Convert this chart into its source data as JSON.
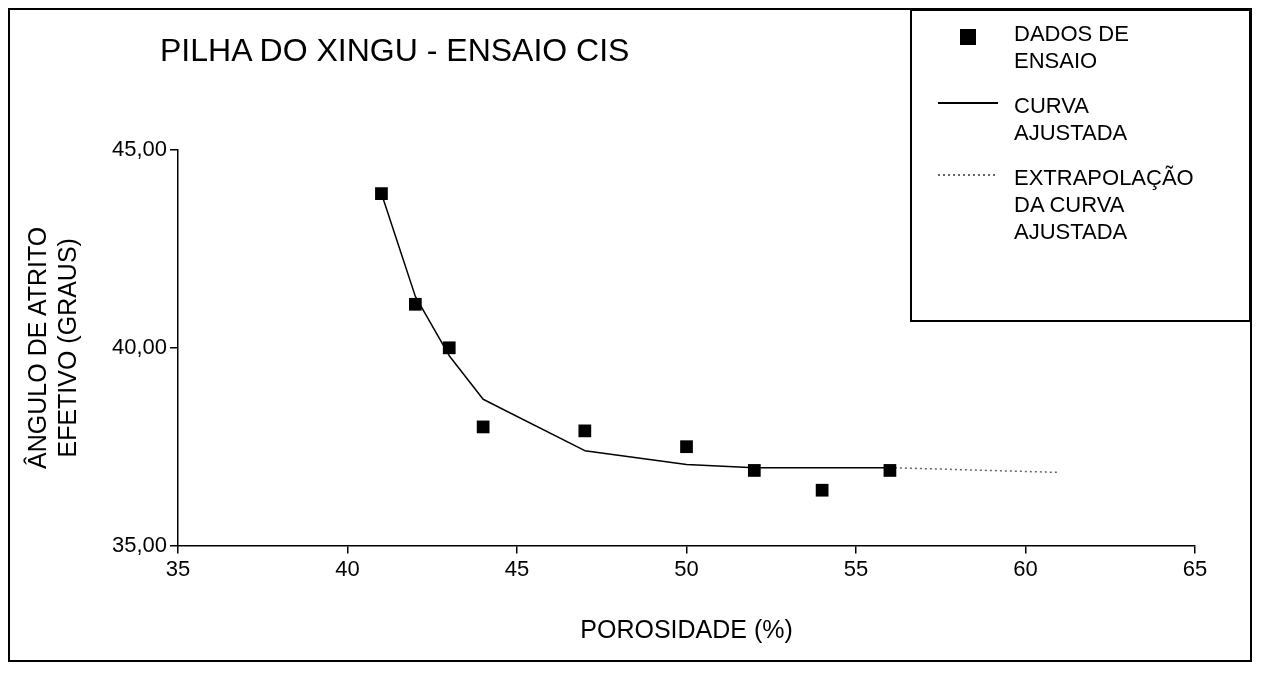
{
  "chart_data": {
    "type": "scatter",
    "title": "PILHA DO XINGU - ENSAIO CIS",
    "xlabel": "POROSIDADE (%)",
    "ylabel": "ÂNGULO DE ATRITO EFETIVO (GRAUS)",
    "xlim": [
      35,
      65
    ],
    "xticks": [
      35,
      40,
      45,
      50,
      55,
      60,
      65
    ],
    "ylim": [
      35,
      45
    ],
    "yticks": [
      {
        "value": 35,
        "label": "35,00"
      },
      {
        "value": 40,
        "label": "40,00"
      },
      {
        "value": 45,
        "label": "45,00"
      }
    ],
    "grid": false,
    "legend": "top right",
    "series": [
      {
        "name": "DADOS DE ENSAIO",
        "type": "scatter",
        "marker": "square",
        "color": "#000000",
        "x": [
          41,
          42,
          43,
          44,
          47,
          50,
          52,
          54,
          56
        ],
        "values": [
          43.9,
          41.1,
          40.0,
          38.0,
          37.9,
          37.5,
          36.9,
          36.4,
          36.9
        ]
      },
      {
        "name": "CURVA AJUSTADA",
        "type": "line",
        "marker": "none",
        "line_style": "solid",
        "color": "#000000",
        "x": [
          41,
          42,
          43,
          44,
          47,
          50,
          52,
          54,
          56
        ],
        "values": [
          43.9,
          41.3,
          39.8,
          38.7,
          37.4,
          37.05,
          36.97,
          36.97,
          36.97
        ]
      },
      {
        "name": "EXTRAPOLAÇÃO DA CURVA AJUSTADA",
        "type": "line",
        "marker": "none",
        "line_style": "dotted",
        "color": "#666666",
        "x": [
          56,
          61
        ],
        "values": [
          36.97,
          36.85
        ]
      }
    ]
  }
}
